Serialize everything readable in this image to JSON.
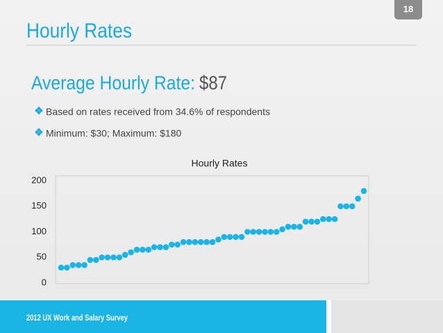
{
  "page_number": "18",
  "header": {
    "title": "Hourly Rates"
  },
  "headline": {
    "label": "Average Hourly Rate:",
    "value": "$87"
  },
  "bullets": [
    "Based on rates received from 34.6% of respondents",
    "Minimum: $30; Maximum: $180"
  ],
  "footer": "2012 UX Work and Salary Survey",
  "chart_data": {
    "type": "scatter",
    "title": "Hourly Rates",
    "color": "#1ab4e6",
    "values": [
      30,
      30,
      35,
      35,
      35,
      45,
      45,
      50,
      50,
      50,
      50,
      55,
      60,
      65,
      65,
      65,
      70,
      70,
      70,
      75,
      75,
      80,
      80,
      80,
      80,
      80,
      80,
      85,
      90,
      90,
      90,
      90,
      100,
      100,
      100,
      100,
      100,
      100,
      105,
      110,
      110,
      110,
      120,
      120,
      120,
      125,
      125,
      125,
      150,
      150,
      150,
      165,
      180
    ],
    "ylim": [
      0,
      200
    ],
    "yticks": [
      0,
      50,
      100,
      150,
      200
    ],
    "grid": false
  }
}
